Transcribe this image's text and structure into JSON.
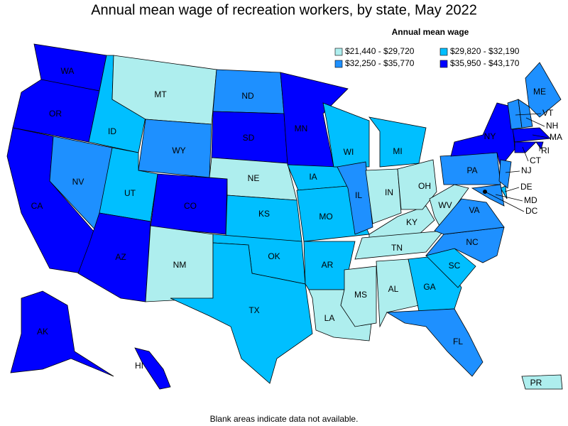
{
  "title": "Annual mean wage of recreation workers, by state, May 2022",
  "legend": {
    "title": "Annual mean wage",
    "items": [
      {
        "label": "$21,440 - $29,720",
        "color": "#aeeeee"
      },
      {
        "label": "$29,820 - $32,190",
        "color": "#00bfff"
      },
      {
        "label": "$32,250 - $35,770",
        "color": "#1e90ff"
      },
      {
        "label": "$35,950 - $43,170",
        "color": "#0000ff"
      }
    ]
  },
  "states": [
    {
      "label": "WA",
      "bin": 3
    },
    {
      "label": "OR",
      "bin": 3
    },
    {
      "label": "CA",
      "bin": 3
    },
    {
      "label": "NV",
      "bin": 2
    },
    {
      "label": "ID",
      "bin": 1
    },
    {
      "label": "MT",
      "bin": 0
    },
    {
      "label": "WY",
      "bin": 2
    },
    {
      "label": "UT",
      "bin": 1
    },
    {
      "label": "AZ",
      "bin": 3
    },
    {
      "label": "CO",
      "bin": 3
    },
    {
      "label": "NM",
      "bin": 0
    },
    {
      "label": "ND",
      "bin": 2
    },
    {
      "label": "SD",
      "bin": 3
    },
    {
      "label": "NE",
      "bin": 0
    },
    {
      "label": "KS",
      "bin": 1
    },
    {
      "label": "OK",
      "bin": 1
    },
    {
      "label": "TX",
      "bin": 1
    },
    {
      "label": "MN",
      "bin": 3
    },
    {
      "label": "IA",
      "bin": 1
    },
    {
      "label": "MO",
      "bin": 1
    },
    {
      "label": "AR",
      "bin": 1
    },
    {
      "label": "LA",
      "bin": 0
    },
    {
      "label": "WI",
      "bin": 1
    },
    {
      "label": "IL",
      "bin": 2
    },
    {
      "label": "MS",
      "bin": 0
    },
    {
      "label": "MI",
      "bin": 1
    },
    {
      "label": "IN",
      "bin": 0
    },
    {
      "label": "KY",
      "bin": 0
    },
    {
      "label": "TN",
      "bin": 0
    },
    {
      "label": "AL",
      "bin": 0
    },
    {
      "label": "OH",
      "bin": 0
    },
    {
      "label": "WV",
      "bin": 0
    },
    {
      "label": "GA",
      "bin": 1
    },
    {
      "label": "FL",
      "bin": 2
    },
    {
      "label": "SC",
      "bin": 1
    },
    {
      "label": "NC",
      "bin": 2
    },
    {
      "label": "VA",
      "bin": 2
    },
    {
      "label": "PA",
      "bin": 2
    },
    {
      "label": "NY",
      "bin": 3
    },
    {
      "label": "ME",
      "bin": 2
    },
    {
      "label": "VT",
      "bin": 2
    },
    {
      "label": "NH",
      "bin": 2
    },
    {
      "label": "MA",
      "bin": 3
    },
    {
      "label": "RI",
      "bin": 3
    },
    {
      "label": "CT",
      "bin": 3
    },
    {
      "label": "NJ",
      "bin": 2
    },
    {
      "label": "DE",
      "bin": 1
    },
    {
      "label": "MD",
      "bin": 2
    },
    {
      "label": "DC",
      "bin": 3
    },
    {
      "label": "AK",
      "bin": 3
    },
    {
      "label": "HI",
      "bin": 3
    },
    {
      "label": "PR",
      "bin": 0
    }
  ],
  "footnote": "Blank areas indicate data not available."
}
